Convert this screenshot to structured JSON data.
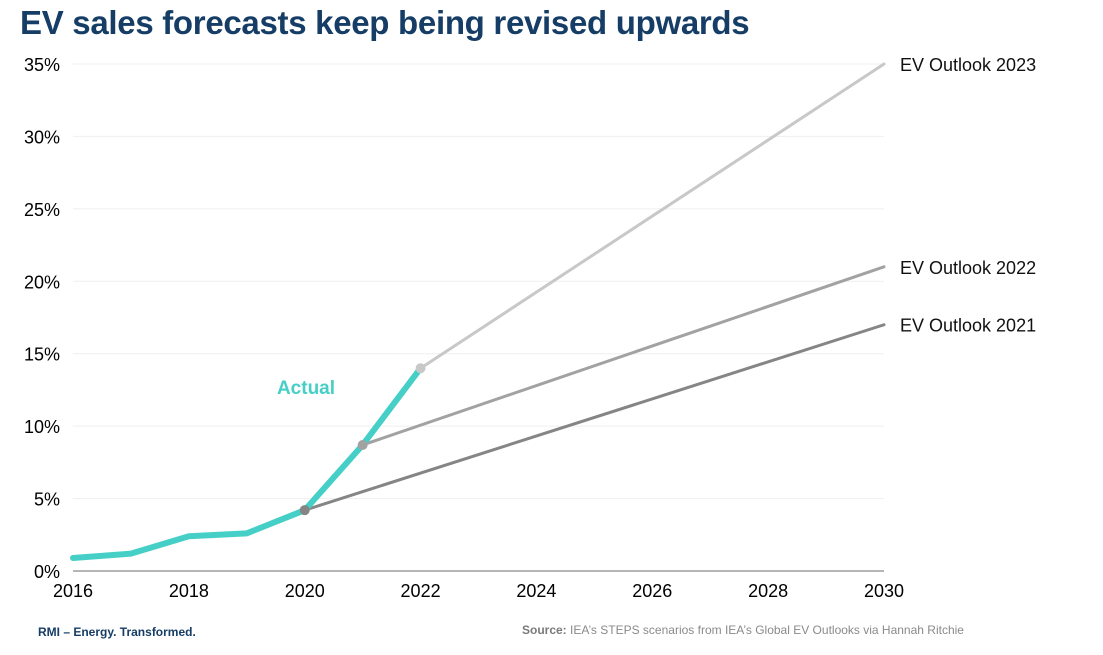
{
  "chart_data": {
    "type": "line",
    "title": "EV sales forecasts keep being revised upwards",
    "xlabel": "",
    "ylabel": "",
    "xlim": [
      2016,
      2030
    ],
    "ylim": [
      0,
      35
    ],
    "x_ticks": [
      2016,
      2018,
      2020,
      2022,
      2024,
      2026,
      2028,
      2030
    ],
    "x_tick_labels": [
      "2016",
      "2018",
      "2020",
      "2022",
      "2024",
      "2026",
      "2028",
      "2030"
    ],
    "y_ticks": [
      0,
      5,
      10,
      15,
      20,
      25,
      30,
      35
    ],
    "y_tick_labels": [
      "0%",
      "5%",
      "10%",
      "15%",
      "20%",
      "25%",
      "30%",
      "35%"
    ],
    "grid": true,
    "series": [
      {
        "name": "Actual",
        "color": "#45cfc7",
        "x": [
          2016,
          2017,
          2018,
          2019,
          2020,
          2021,
          2022
        ],
        "y": [
          0.9,
          1.2,
          2.4,
          2.6,
          4.2,
          8.7,
          14
        ]
      },
      {
        "name": "EV Outlook 2021",
        "color": "#858585",
        "x": [
          2020,
          2030
        ],
        "y": [
          4.2,
          17
        ]
      },
      {
        "name": "EV Outlook 2022",
        "color": "#a2a2a2",
        "x": [
          2021,
          2030
        ],
        "y": [
          8.7,
          21
        ]
      },
      {
        "name": "EV Outlook 2023",
        "color": "#c8c8c8",
        "x": [
          2022,
          2030
        ],
        "y": [
          14,
          35
        ]
      }
    ]
  },
  "footer": {
    "brand": "RMI – Energy. Transformed.",
    "source_label": "Source:",
    "source_text": " IEA’s STEPS scenarios from IEA’s Global EV Outlooks via Hannah Ritchie"
  }
}
